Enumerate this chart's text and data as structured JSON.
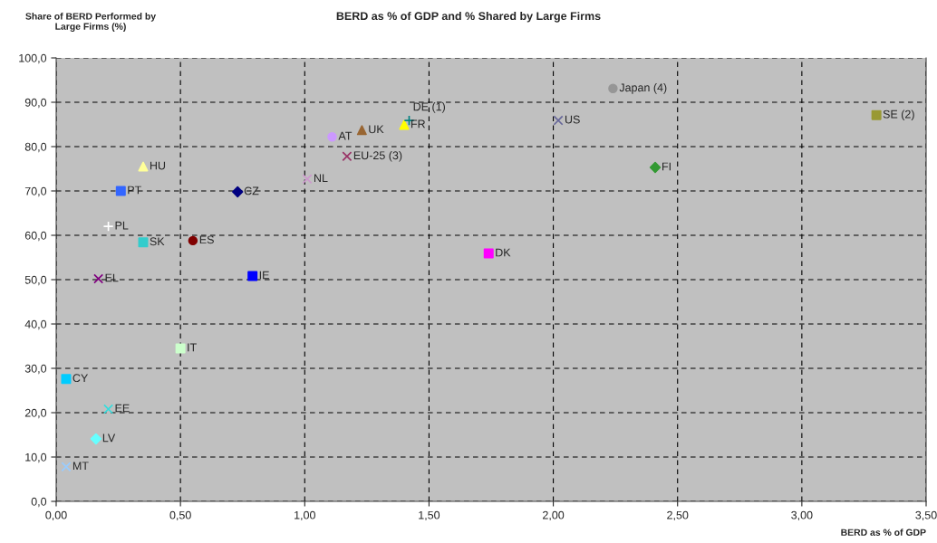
{
  "chart_data": {
    "type": "scatter",
    "title": "BERD as % of GDP and % Shared by Large Firms",
    "xlabel": "BERD as % of GDP",
    "ylabel": "Share of BERD Performed by\nLarge Firms (%)",
    "xlim": [
      0,
      3.5
    ],
    "ylim": [
      0,
      100
    ],
    "xticks": [
      {
        "value": 0,
        "label": "0,00"
      },
      {
        "value": 0.5,
        "label": "0,50"
      },
      {
        "value": 1,
        "label": "1,00"
      },
      {
        "value": 1.5,
        "label": "1,50"
      },
      {
        "value": 2,
        "label": "2,00"
      },
      {
        "value": 2.5,
        "label": "2,50"
      },
      {
        "value": 3,
        "label": "3,00"
      },
      {
        "value": 3.5,
        "label": "3,50"
      }
    ],
    "yticks": [
      {
        "value": 0,
        "label": "0,0"
      },
      {
        "value": 10,
        "label": "10,0"
      },
      {
        "value": 20,
        "label": "20,0"
      },
      {
        "value": 30,
        "label": "30,0"
      },
      {
        "value": 40,
        "label": "40,0"
      },
      {
        "value": 50,
        "label": "50,0"
      },
      {
        "value": 60,
        "label": "60,0"
      },
      {
        "value": 70,
        "label": "70,0"
      },
      {
        "value": 80,
        "label": "80,0"
      },
      {
        "value": 90,
        "label": "90,0"
      },
      {
        "value": 100,
        "label": "100,0"
      }
    ],
    "grid": true,
    "legend": false,
    "series": [
      {
        "name": "HU",
        "color": "#ffff99",
        "marker": "triangle",
        "x": [
          0.35
        ],
        "values": [
          75.5
        ]
      },
      {
        "name": "PT",
        "color": "#3366ff",
        "marker": "square",
        "x": [
          0.26
        ],
        "values": [
          70.0
        ]
      },
      {
        "name": "PL",
        "color": "#ffffff",
        "marker": "plus",
        "x": [
          0.21
        ],
        "values": [
          62.0
        ]
      },
      {
        "name": "SK",
        "color": "#33cccc",
        "marker": "square",
        "x": [
          0.35
        ],
        "values": [
          58.4
        ]
      },
      {
        "name": "ES",
        "color": "#800000",
        "marker": "circle",
        "x": [
          0.55
        ],
        "values": [
          58.8
        ]
      },
      {
        "name": "CZ",
        "color": "#000080",
        "marker": "diamond",
        "x": [
          0.73
        ],
        "values": [
          69.8
        ]
      },
      {
        "name": "IE",
        "color": "#0000ff",
        "marker": "square",
        "x": [
          0.79
        ],
        "values": [
          50.8
        ]
      },
      {
        "name": "EL",
        "color": "#800080",
        "marker": "cross",
        "x": [
          0.17
        ],
        "values": [
          50.2
        ]
      },
      {
        "name": "IT",
        "color": "#ccffcc",
        "marker": "square",
        "x": [
          0.5
        ],
        "values": [
          34.5
        ]
      },
      {
        "name": "CY",
        "color": "#00ccff",
        "marker": "square",
        "x": [
          0.04
        ],
        "values": [
          27.6
        ]
      },
      {
        "name": "EE",
        "color": "#33dddd",
        "marker": "cross",
        "x": [
          0.21
        ],
        "values": [
          20.8
        ]
      },
      {
        "name": "LV",
        "color": "#66ffff",
        "marker": "diamond",
        "x": [
          0.16
        ],
        "values": [
          14.1
        ]
      },
      {
        "name": "MT",
        "color": "#99ccff",
        "marker": "cross",
        "x": [
          0.04
        ],
        "values": [
          7.8
        ]
      },
      {
        "name": "AT",
        "color": "#cc99ff",
        "marker": "circle",
        "x": [
          1.11
        ],
        "values": [
          82.2
        ]
      },
      {
        "name": "UK",
        "color": "#996633",
        "marker": "triangle",
        "x": [
          1.23
        ],
        "values": [
          83.7
        ]
      },
      {
        "name": "FR",
        "color": "#ffff00",
        "marker": "triangle",
        "x": [
          1.4
        ],
        "values": [
          84.9
        ]
      },
      {
        "name": "DE (1)",
        "color": "#008080",
        "marker": "plus",
        "x": [
          1.42
        ],
        "values": [
          85.9
        ]
      },
      {
        "name": "EU-25 (3)",
        "color": "#993366",
        "marker": "cross",
        "x": [
          1.17
        ],
        "values": [
          77.8
        ]
      },
      {
        "name": "NL",
        "color": "#cc99cc",
        "marker": "cross",
        "x": [
          1.01
        ],
        "values": [
          72.7
        ]
      },
      {
        "name": "DK",
        "color": "#ff00ff",
        "marker": "square",
        "x": [
          1.74
        ],
        "values": [
          55.9
        ]
      },
      {
        "name": "US",
        "color": "#666699",
        "marker": "cross",
        "x": [
          2.02
        ],
        "values": [
          85.9
        ]
      },
      {
        "name": "Japan (4)",
        "color": "#969696",
        "marker": "circle",
        "x": [
          2.24
        ],
        "values": [
          93.1
        ]
      },
      {
        "name": "FI",
        "color": "#339933",
        "marker": "diamond",
        "x": [
          2.41
        ],
        "values": [
          75.3
        ]
      },
      {
        "name": "SE (2)",
        "color": "#999933",
        "marker": "square",
        "x": [
          3.3
        ],
        "values": [
          87.1
        ]
      }
    ]
  }
}
